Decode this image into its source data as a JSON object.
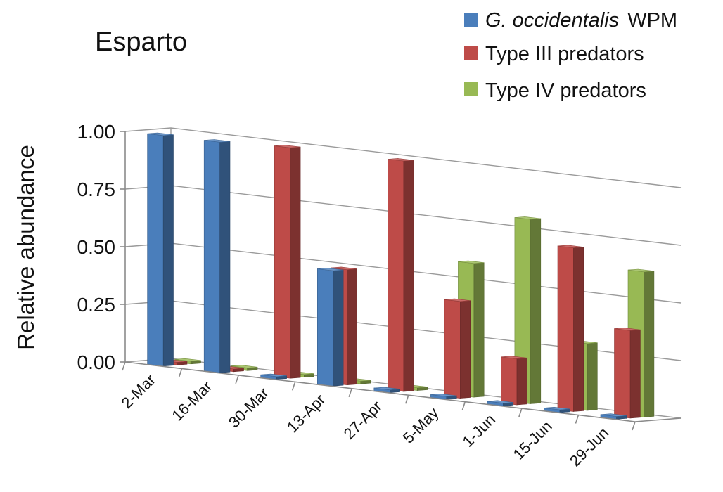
{
  "chart_data": {
    "type": "bar",
    "subtype": "3d-clustered-column",
    "title": "Esparto",
    "xlabel": "",
    "ylabel": "Relative abundance",
    "ylim": [
      0,
      1
    ],
    "yticks": [
      "0.00",
      "0.25",
      "0.50",
      "0.75",
      "1.00"
    ],
    "grid": true,
    "legend_position": "top-right",
    "categories": [
      "2-Mar",
      "16-Mar",
      "30-Mar",
      "13-Apr",
      "27-Apr",
      "5-May",
      "1-Jun",
      "15-Jun",
      "29-Jun"
    ],
    "series": [
      {
        "name_italic": "G. occidentalis",
        "name_suffix": "WPM",
        "color": "#4a7ebb",
        "values": [
          1.0,
          1.0,
          0.0,
          0.5,
          0.0,
          0.0,
          0.0,
          0.0,
          0.0
        ]
      },
      {
        "name": "Type III predators",
        "color": "#be4b48",
        "values": [
          0.0,
          0.0,
          1.0,
          0.5,
          1.0,
          0.42,
          0.2,
          0.71,
          0.38
        ]
      },
      {
        "name": "Type IV predators",
        "color": "#98b954",
        "values": [
          0.0,
          0.0,
          0.0,
          0.0,
          0.0,
          0.58,
          0.8,
          0.29,
          0.63
        ]
      }
    ]
  }
}
